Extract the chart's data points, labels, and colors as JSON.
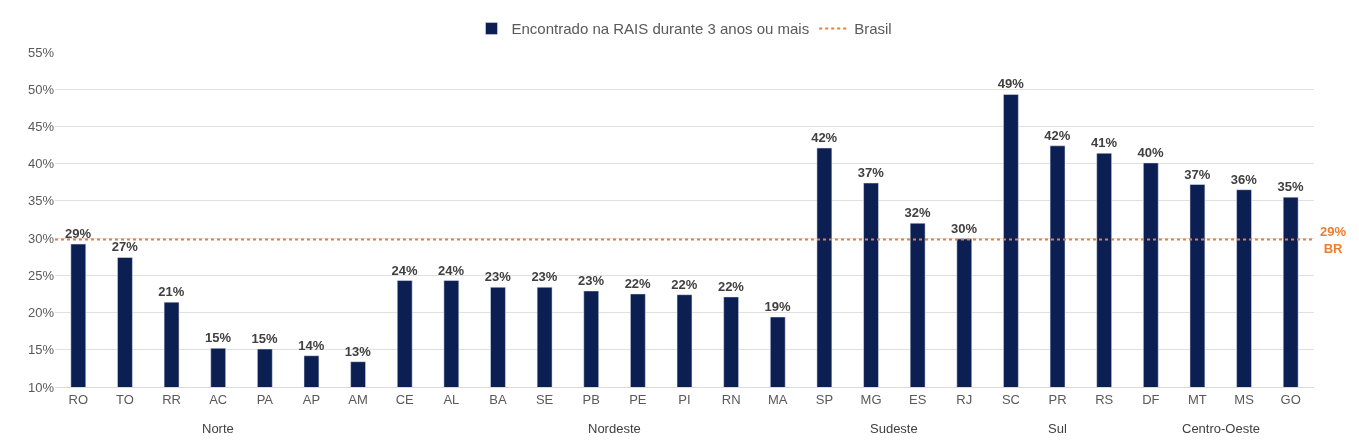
{
  "chart_data": {
    "type": "bar",
    "categories": [
      "RO",
      "TO",
      "RR",
      "AC",
      "PA",
      "AP",
      "AM",
      "CE",
      "AL",
      "BA",
      "SE",
      "PB",
      "PE",
      "PI",
      "RN",
      "MA",
      "SP",
      "MG",
      "ES",
      "RJ",
      "SC",
      "PR",
      "RS",
      "DF",
      "MT",
      "MS",
      "GO"
    ],
    "series": [
      {
        "name": "Encontrado na RAIS durante 3 anos ou mais",
        "color": "#0c1f52",
        "values": [
          29.2,
          27.4,
          21.4,
          15.2,
          15.1,
          14.2,
          13.4,
          24.3,
          24.3,
          23.4,
          23.4,
          22.9,
          22.5,
          22.4,
          22.1,
          19.4,
          42.1,
          37.4,
          32.0,
          29.9,
          49.3,
          42.4,
          41.4,
          40.1,
          37.2,
          36.5,
          35.5
        ],
        "value_labels": [
          "29%",
          "27%",
          "21%",
          "15%",
          "15%",
          "14%",
          "13%",
          "24%",
          "24%",
          "23%",
          "23%",
          "23%",
          "22%",
          "22%",
          "22%",
          "19%",
          "42%",
          "37%",
          "32%",
          "30%",
          "49%",
          "42%",
          "41%",
          "40%",
          "37%",
          "36%",
          "35%"
        ]
      }
    ],
    "ylim": [
      10,
      55
    ],
    "yticks": [
      {
        "value": 10,
        "label": "10%"
      },
      {
        "value": 15,
        "label": "15%"
      },
      {
        "value": 20,
        "label": "20%"
      },
      {
        "value": 25,
        "label": "25%"
      },
      {
        "value": 30,
        "label": "30%"
      },
      {
        "value": 35,
        "label": "35%"
      },
      {
        "value": 40,
        "label": "40%"
      },
      {
        "value": 45,
        "label": "45%"
      },
      {
        "value": 50,
        "label": "50%"
      },
      {
        "value": 55,
        "label": "55%"
      }
    ],
    "ref_lines": [
      {
        "axis": "y",
        "value": 29.8,
        "label": "29%\nBR",
        "color": "#ed7d31",
        "line_style": "dotted"
      }
    ],
    "annotations": [
      "Brasil",
      "Norte",
      "Nordeste",
      "Sudeste",
      "Sul",
      "Centro-Oeste"
    ],
    "grid": "y",
    "legend": "top"
  }
}
